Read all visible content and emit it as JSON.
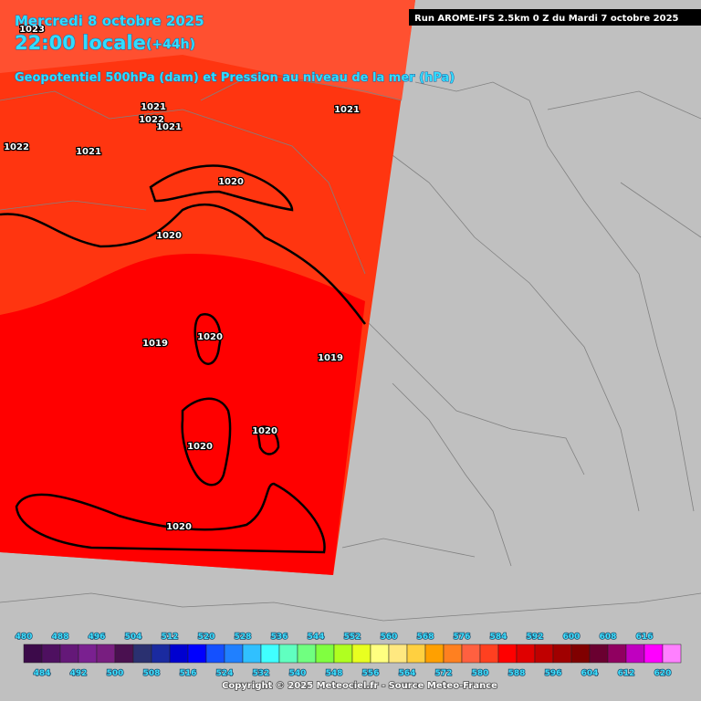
{
  "header": {
    "date": "Mercredi 8 octobre 2025",
    "time": "22:00 locale",
    "lead": "(+44h)",
    "subtitle": "Geopotentiel 500hPa (dam) et Pression au niveau de la mer (hPa)",
    "run": "Run AROME-IFS 2.5km 0 Z du Mardi 7 octobre 2025"
  },
  "isobar_labels": [
    "1023",
    "1021",
    "1022",
    "1021",
    "1021",
    "1022",
    "1021",
    "1020",
    "1020",
    "1020",
    "1019",
    "1019",
    "1020",
    "1020",
    "1020"
  ],
  "colorbar": {
    "values": [
      480,
      484,
      488,
      492,
      496,
      500,
      504,
      508,
      512,
      516,
      520,
      524,
      528,
      532,
      536,
      540,
      544,
      548,
      552,
      556,
      560,
      564,
      568,
      572,
      576,
      580,
      584,
      588,
      592,
      596,
      600,
      604,
      608,
      612,
      616,
      620
    ],
    "colors": [
      "#3c0a4a",
      "#4e1060",
      "#641878",
      "#7a2090",
      "#781e80",
      "#4a1050",
      "#2a3070",
      "#1a2aa0",
      "#0000d0",
      "#0000ff",
      "#1450ff",
      "#2080ff",
      "#30c0ff",
      "#40ffff",
      "#60ffc0",
      "#70ff80",
      "#80ff40",
      "#b0ff20",
      "#e8ff20",
      "#ffff80",
      "#ffe880",
      "#ffd040",
      "#ffa000",
      "#ff8020",
      "#ff6040",
      "#ff4020",
      "#ff0000",
      "#e00000",
      "#c00000",
      "#a00000",
      "#800000",
      "#6a0030",
      "#900060",
      "#c000c0",
      "#ff00ff",
      "#ff80ff"
    ]
  },
  "footer": {
    "copyright": "Copyright © 2025 Meteociel.fr - Source Meteo-France"
  }
}
